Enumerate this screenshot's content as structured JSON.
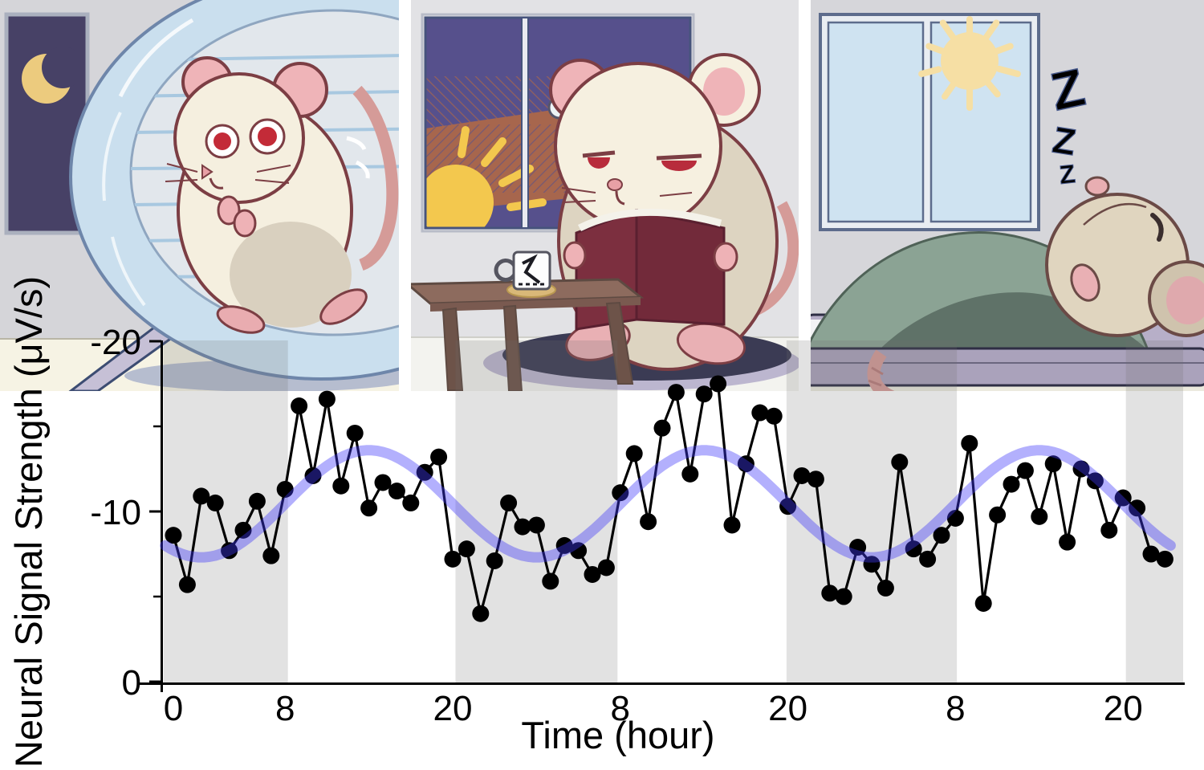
{
  "figure": {
    "description": "circadian-rhythm-figure",
    "background": "#ffffff"
  },
  "panels": [
    {
      "id": "night-running",
      "time_of_day": "night",
      "scene": "mouse-running-in-exercise-wheel",
      "window_icon": "crescent-moon",
      "colors": {
        "wall": "#d5d5d9",
        "floor": "#f6f3e4",
        "window_sky": "#474166",
        "moon": "#eccb7e",
        "wheel_rim": "#cadfee",
        "wheel_inner": "#e2e7ec",
        "mouse_body": "#f5efdf",
        "mouse_shade": "#d9d0bf",
        "ear_pink": "#efb4b8",
        "eye_red": "#c32b38",
        "outline": "#7c3e44",
        "stand": "#c6c0d6"
      }
    },
    {
      "id": "dawn-reading",
      "time_of_day": "sunrise",
      "scene": "sleepy-mouse-reading-book-at-low-table",
      "window_icon": "rising-sun",
      "colors": {
        "wall": "#e2e2e5",
        "floor": "#f3f3ef",
        "sky_top": "#56508c",
        "sky_glow": "#a7664d",
        "sun": "#f3c84e",
        "book": "#7c2f3f",
        "table": "#8d6b5e",
        "table_leg": "#6d5349",
        "rug": "#3b3b54",
        "rug_shadow": "#bcb6cf",
        "mug": "#fdfdfd",
        "coaster": "#d9b878",
        "mouse_head": "#f6f0e0",
        "mouse_body": "#ddd4c1"
      }
    },
    {
      "id": "day-sleeping",
      "time_of_day": "day",
      "scene": "mouse-sleeping-under-blanket-on-futon",
      "window_icon": "sun",
      "zzz": [
        "Z",
        "Z",
        "Z"
      ],
      "colors": {
        "wall": "#d6d6da",
        "window_pane": "#cfe3f1",
        "window_frame": "#e9edf2",
        "sun": "#f6dfa4",
        "z_color": "#7d99cf",
        "blanket_light": "#8ba394",
        "blanket_dark": "#5f7268",
        "futon_top": "#b7afc8",
        "futon_base": "#aaa2bb",
        "mouse_head": "#e0d5bf",
        "sheet": "#f3f3f5"
      }
    }
  ],
  "chart_data": {
    "type": "scatter+line with smoothed trend",
    "xlabel": "Time (hour)",
    "ylabel": "Neural Signal Strength (μV/s)",
    "y_axis_inverted": true,
    "ylim": [
      0,
      -20
    ],
    "x_sampling_hours": 1,
    "x": [
      0,
      1,
      2,
      3,
      4,
      5,
      6,
      7,
      8,
      9,
      10,
      11,
      12,
      13,
      14,
      15,
      16,
      17,
      18,
      19,
      20,
      21,
      22,
      23,
      24,
      25,
      26,
      27,
      28,
      29,
      30,
      31,
      32,
      33,
      34,
      35,
      36,
      37,
      38,
      39,
      40,
      41,
      42,
      43,
      44,
      45,
      46,
      47,
      48,
      49,
      50,
      51,
      52,
      53,
      54,
      55,
      56,
      57,
      58,
      59,
      60,
      61,
      62,
      63,
      64,
      65,
      66,
      67,
      68,
      69,
      70,
      71
    ],
    "values": [
      -8.6,
      -5.7,
      -10.9,
      -10.5,
      -7.7,
      -8.9,
      -10.6,
      -7.4,
      -11.3,
      -16.2,
      -12.1,
      -16.6,
      -11.5,
      -14.6,
      -10.2,
      -11.7,
      -11.2,
      -10.5,
      -12.3,
      -13.2,
      -7.2,
      -7.8,
      -4.0,
      -7.1,
      -10.5,
      -9.1,
      -9.2,
      -5.9,
      -8.0,
      -7.7,
      -6.3,
      -6.7,
      -11.1,
      -13.4,
      -9.4,
      -14.9,
      -17.0,
      -12.2,
      -16.9,
      -17.5,
      -9.2,
      -12.8,
      -15.8,
      -15.6,
      -10.3,
      -12.1,
      -11.9,
      -5.2,
      -5.0,
      -7.9,
      -6.9,
      -5.5,
      -12.9,
      -7.8,
      -7.2,
      -8.6,
      -9.6,
      -14.0,
      -4.6,
      -9.8,
      -11.6,
      -12.4,
      -9.7,
      -12.8,
      -8.2,
      -12.5,
      -11.8,
      -8.9,
      -10.8,
      -10.2,
      -7.5,
      -7.2
    ],
    "trend": {
      "shape": "cosine",
      "midline": -10.45,
      "amplitude": 3.15,
      "period_hours": 24,
      "peak_hour": 14,
      "draw_range_hours": [
        -0.6,
        71.6
      ]
    },
    "x_ticks": [
      {
        "hour": 0,
        "label": "0"
      },
      {
        "hour": 8,
        "label": "8"
      },
      {
        "hour": 20,
        "label": "20"
      },
      {
        "hour": 32,
        "label": "8"
      },
      {
        "hour": 44,
        "label": "20"
      },
      {
        "hour": 56,
        "label": "8"
      },
      {
        "hour": 68,
        "label": "20"
      }
    ],
    "y_ticks_major": [
      {
        "value": 0,
        "label": "0"
      },
      {
        "value": -10,
        "label": "-10"
      },
      {
        "value": -20,
        "label": "-20"
      }
    ],
    "y_ticks_minor": [
      -5,
      -15
    ],
    "dark_phase_bands_hours": [
      [
        -0.7,
        8.2
      ],
      [
        20.2,
        31.8
      ],
      [
        43.9,
        56.1
      ],
      [
        68.2,
        72.3
      ]
    ],
    "legend": "none",
    "grid": "off",
    "colors": {
      "points": "#000000",
      "line": "#000000",
      "trend": "rgba(64,58,250,0.40)",
      "band": "rgba(110,110,110,0.20)"
    }
  }
}
